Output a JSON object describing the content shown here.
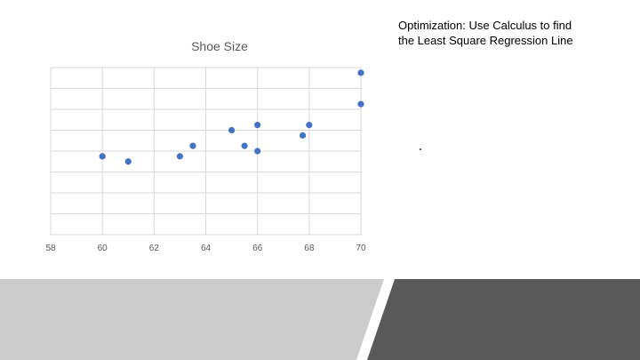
{
  "slide": {
    "heading_lines": [
      "Optimization:  Use Calculus to find",
      "the Least Square Regression Line"
    ]
  },
  "colors": {
    "marker": "#4472c4",
    "grid": "#d9d9d9",
    "footer_light": "#cccccc",
    "footer_dark": "#595959",
    "title_gray": "#595959"
  },
  "chart_data": {
    "type": "scatter",
    "title": "Shoe Size",
    "xlabel": "",
    "ylabel": "",
    "xlim": [
      58,
      70
    ],
    "x_ticks": [
      58,
      60,
      62,
      64,
      66,
      68,
      70
    ],
    "y_gridlines": 8,
    "grid": true,
    "legend": "none",
    "points": [
      {
        "x": 60,
        "y": 3.75
      },
      {
        "x": 61,
        "y": 3.5
      },
      {
        "x": 63,
        "y": 3.75
      },
      {
        "x": 63.5,
        "y": 4.25
      },
      {
        "x": 65,
        "y": 5.0
      },
      {
        "x": 65.5,
        "y": 4.25
      },
      {
        "x": 66,
        "y": 5.25
      },
      {
        "x": 66,
        "y": 4.0
      },
      {
        "x": 67.75,
        "y": 4.75
      },
      {
        "x": 68,
        "y": 5.25
      },
      {
        "x": 70,
        "y": 7.75
      },
      {
        "x": 70,
        "y": 6.25
      }
    ]
  }
}
